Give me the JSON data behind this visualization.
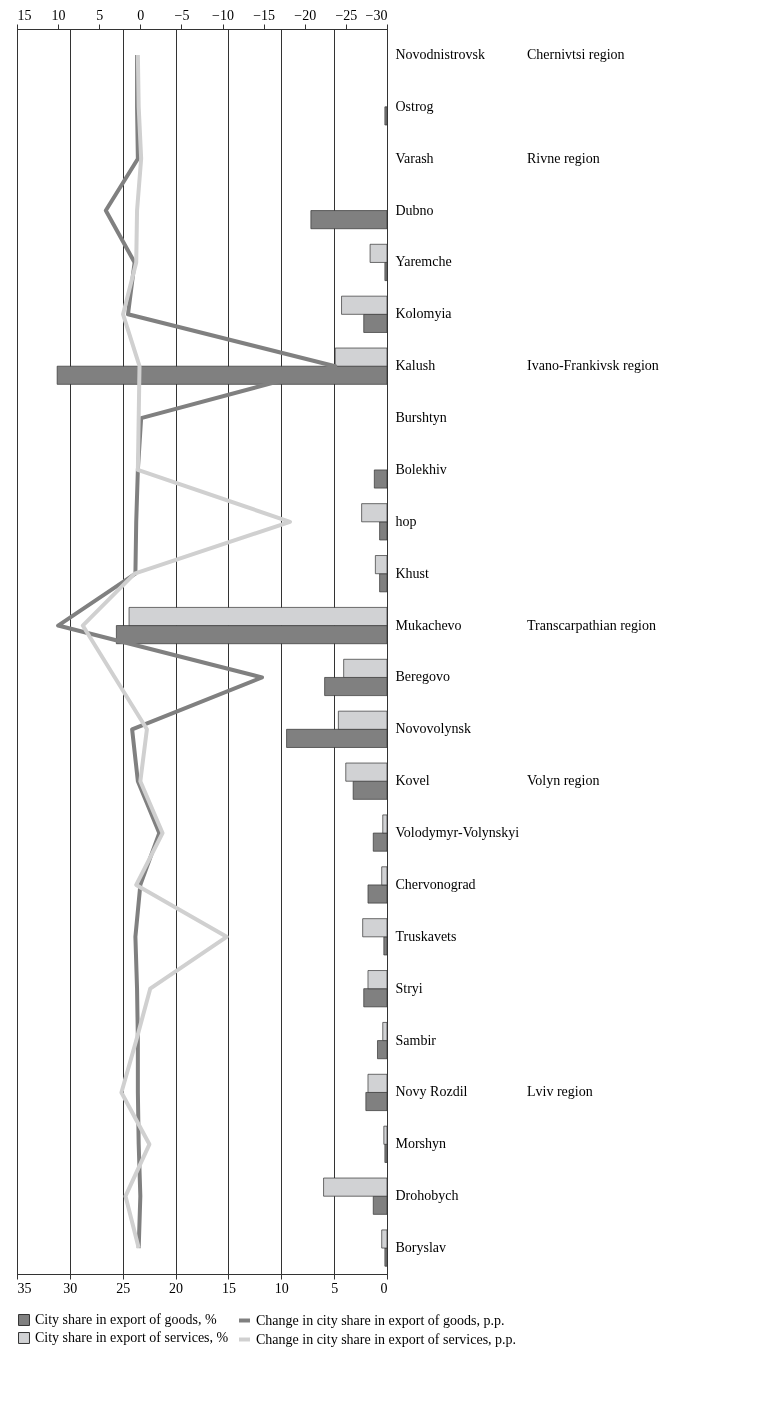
{
  "chart_data": {
    "type": "bar",
    "orientation": "horizontal",
    "categories": [
      "Novodnistrovsk",
      "Ostrog",
      "Varash",
      "Dubno",
      "Yaremche",
      "Kolomyia",
      "Kalush",
      "Burshtyn",
      "Bolekhiv",
      "hop",
      "Khust",
      "Mukachevo",
      "Beregovo",
      "Novovolynsk",
      "Kovel",
      "Volodymyr-Volynskyi",
      "Chervonograd",
      "Truskavets",
      "Stryi",
      "Sambir",
      "Novy Rozdil",
      "Morshyn",
      "Drohobych",
      "Boryslav"
    ],
    "series": [
      {
        "name": "City share in export of goods, %",
        "type": "bar",
        "color": "#808080",
        "values": [
          null,
          0.2,
          null,
          7.2,
          0.2,
          2.2,
          31.2,
          null,
          1.2,
          0.7,
          0.7,
          25.6,
          5.9,
          9.5,
          3.2,
          1.3,
          1.8,
          0.3,
          2.2,
          0.9,
          2.0,
          0.2,
          1.3,
          0.2
        ]
      },
      {
        "name": "City share in export of services, %",
        "type": "bar",
        "color": "#d1d2d4",
        "values": [
          null,
          null,
          null,
          null,
          1.6,
          4.3,
          4.9,
          null,
          null,
          2.4,
          1.1,
          24.4,
          4.1,
          4.6,
          3.9,
          0.4,
          0.5,
          2.3,
          1.8,
          0.4,
          1.8,
          0.3,
          6.0,
          0.5
        ]
      },
      {
        "name": "Change in city share in export of goods, p.p.",
        "type": "line",
        "axis": "x2",
        "color": "#808080",
        "values": [
          0.4,
          0.4,
          0.3,
          4.2,
          0.7,
          1.5,
          -23.7,
          -0.1,
          0.3,
          0.5,
          0.6,
          10.0,
          -14.8,
          1.0,
          0.3,
          -2.3,
          0.0,
          0.6,
          0.4,
          0.3,
          0.3,
          0.2,
          0.0,
          0.2
        ]
      },
      {
        "name": "Change in city share in export of services, p.p.",
        "type": "line",
        "axis": "x2",
        "color": "#d0d0d0",
        "values": [
          0.3,
          0.2,
          -0.1,
          0.4,
          0.5,
          2.1,
          0.1,
          0.2,
          0.3,
          -18.2,
          0.7,
          7.0,
          3.1,
          -0.8,
          0.0,
          -2.7,
          0.5,
          -10.5,
          -1.2,
          0.5,
          2.3,
          -1.1,
          1.8,
          0.2
        ]
      }
    ],
    "xlim": [
      35,
      0
    ],
    "xticks": [
      0,
      5,
      10,
      15,
      20,
      25,
      30,
      35
    ],
    "x2lim": [
      15,
      -30
    ],
    "x2ticks": [
      15,
      10,
      5,
      0,
      -5,
      -10,
      -15,
      -20,
      -25,
      -30
    ],
    "grid": "x",
    "legend": "bottom",
    "line_style": "solid",
    "annotations": [
      "Chernivtsi region",
      "Rivne region",
      "Ivano-Frankivsk region",
      "Transcarpathian region",
      "Volyn region",
      "Lviv region"
    ]
  }
}
